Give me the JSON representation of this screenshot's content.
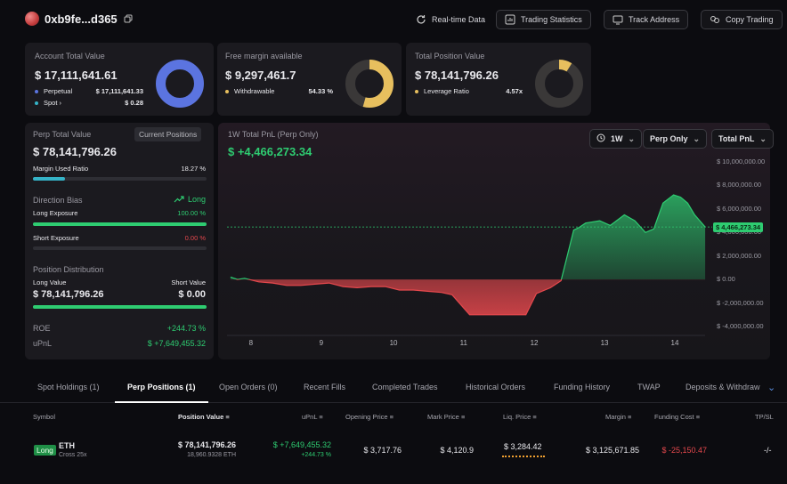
{
  "header": {
    "address": "0xb9fe...d365",
    "buttons": {
      "realtime": "Real-time Data",
      "stats": "Trading Statistics",
      "track": "Track Address",
      "copy": "Copy Trading"
    }
  },
  "account": {
    "label": "Account Total Value",
    "value": "$ 17,111,641.61",
    "perp_label": "Perpetual",
    "perp_value": "$ 17,111,641.33",
    "spot_label": "Spot",
    "spot_value": "$ 0.28",
    "perp_share": 0.99999
  },
  "margin": {
    "label": "Free margin available",
    "value": "$ 9,297,461.7",
    "withdrawable_label": "Withdrawable",
    "withdrawable_value": "54.33 %",
    "withdrawable_share": 0.5433
  },
  "position_total": {
    "label": "Total Position Value",
    "value": "$ 78,141,796.26",
    "leverage_label": "Leverage Ratio",
    "leverage_value": "4.57x"
  },
  "perp": {
    "label": "Perp Total Value",
    "tag": "Current Positions",
    "value": "$ 78,141,796.26",
    "margin_used_label": "Margin Used Ratio",
    "margin_used_value": "18.27 %",
    "margin_used_share": 0.1827,
    "direction_label": "Direction Bias",
    "direction_value": "Long",
    "long_label": "Long Exposure",
    "long_value": "100.00 %",
    "long_share": 1.0,
    "short_label": "Short Exposure",
    "short_value": "0.00 %",
    "short_share": 0.0,
    "dist_label": "Position Distribution",
    "long_value_label": "Long Value",
    "short_value_label": "Short Value",
    "long_value_amount": "$ 78,141,796.26",
    "short_value_amount": "$ 0.00",
    "roe_label": "ROE",
    "roe_value": "+244.73 %",
    "upnl_label": "uPnL",
    "upnl_value": "$ +7,649,455.32"
  },
  "pnl_panel": {
    "title": "1W Total PnL (Perp Only)",
    "value": "$ +4,466,273.34",
    "dd_period": "1W",
    "dd_scope": "Perp Only",
    "dd_metric": "Total PnL",
    "current_label": "$ 4,466,273.34"
  },
  "chart_data": {
    "type": "area",
    "title": "1W Total PnL (Perp Only)",
    "y_ticks": [
      "$ 10,000,000.00",
      "$ 8,000,000.00",
      "$ 6,000,000.00",
      "$ 4,000,000.00",
      "$ 2,000,000.00",
      "$ 0.00",
      "$ -2,000,000.00",
      "$ -4,000,000.00"
    ],
    "x_ticks": [
      "8",
      "9",
      "10",
      "11",
      "12",
      "13",
      "14"
    ],
    "ylim": [
      -4000000,
      10000000
    ],
    "xlim": [
      7.65,
      14.55
    ],
    "current_value": 4466273.34,
    "x": [
      7.7,
      7.8,
      7.9,
      8.1,
      8.3,
      8.5,
      8.7,
      8.9,
      9.1,
      9.3,
      9.5,
      9.7,
      9.9,
      10.1,
      10.3,
      10.5,
      10.7,
      10.85,
      11.1,
      11.4,
      11.7,
      11.9,
      12.05,
      12.25,
      12.4,
      12.58,
      12.65,
      12.75,
      12.95,
      13.1,
      13.3,
      13.45,
      13.6,
      13.72,
      13.85,
      14.0,
      14.1,
      14.2,
      14.3,
      14.45
    ],
    "values": [
      200000,
      0,
      100000,
      -200000,
      -300000,
      -500000,
      -500000,
      -400000,
      -300000,
      -600000,
      -700000,
      -600000,
      -600000,
      -900000,
      -900000,
      -1000000,
      -1100000,
      -1300000,
      -3000000,
      -3000000,
      -3000000,
      -3000000,
      -1200000,
      -700000,
      -100000,
      4200000,
      4400000,
      4800000,
      5000000,
      4600000,
      5500000,
      5000000,
      4000000,
      4300000,
      6500000,
      7200000,
      7000000,
      6500000,
      5500000,
      4466273
    ]
  },
  "tabs": [
    "Spot Holdings (1)",
    "Perp Positions (1)",
    "Open Orders (0)",
    "Recent Fills",
    "Completed Trades",
    "Historical Orders",
    "Funding History",
    "TWAP",
    "Deposits & Withdraw"
  ],
  "table": {
    "headers": {
      "symbol": "Symbol",
      "position_value": "Position Value",
      "upnl": "uPnL",
      "open_price": "Opening Price",
      "mark_price": "Mark Price",
      "liq_price": "Liq. Price",
      "margin": "Margin",
      "funding": "Funding Cost",
      "tpsl": "TP/SL"
    },
    "row": {
      "side": "Long",
      "symbol": "ETH",
      "mode": "Cross 25x",
      "position_value": "$ 78,141,796.26",
      "position_size": "18,960.9328 ETH",
      "upnl": "$ +7,649,455.32",
      "upnl_pct": "+244.73 %",
      "open_price": "$ 3,717.76",
      "mark_price": "$ 4,120.9",
      "liq_price": "$ 3,284.42",
      "margin": "$ 3,125,671.85",
      "funding": "$ -25,150.47",
      "tpsl": "-/-"
    }
  },
  "colors": {
    "green": "#2ecc71",
    "red": "#e5484d",
    "blue": "#5b74e0",
    "gold": "#e7bf5e",
    "teal": "#35b3c7"
  }
}
